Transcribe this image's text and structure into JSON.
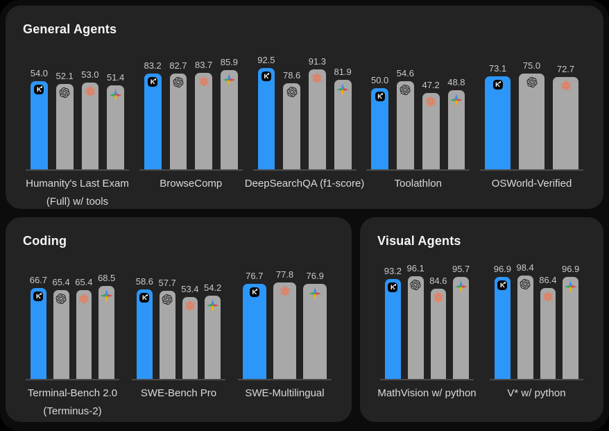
{
  "page": {
    "background": "#0C0C0C",
    "panel_background": "#232323"
  },
  "colors": {
    "highlight_bar": "#2D96F9",
    "default_bar": "#A8A8A8",
    "value_label": "#C9C9C9",
    "benchmark_label": "#DADADA",
    "baseline": "#4A4A4A",
    "claude_coral": "#E97C5B",
    "openai_dark": "#161616",
    "kimi_badge": "#060606"
  },
  "models": {
    "kimi": {
      "icon": "kimi-k-icon",
      "highlight": true
    },
    "openai": {
      "icon": "openai-icon",
      "highlight": false
    },
    "claude": {
      "icon": "claude-icon",
      "highlight": false
    },
    "gemini": {
      "icon": "gemini-icon",
      "highlight": false
    }
  },
  "panels": [
    {
      "title": "General Agents",
      "groups": [
        {
          "label": "Humanity's Last Exam (Full) w/ tools",
          "bars": [
            {
              "model": "kimi",
              "value": 54.0
            },
            {
              "model": "openai",
              "value": 52.1
            },
            {
              "model": "claude",
              "value": 53.0
            },
            {
              "model": "gemini",
              "value": 51.4
            }
          ]
        },
        {
          "label": "BrowseComp",
          "bars": [
            {
              "model": "kimi",
              "value": 83.2
            },
            {
              "model": "openai",
              "value": 82.7
            },
            {
              "model": "claude",
              "value": 83.7
            },
            {
              "model": "gemini",
              "value": 85.9
            }
          ]
        },
        {
          "label": "DeepSearchQA (f1-score)",
          "bars": [
            {
              "model": "kimi",
              "value": 92.5
            },
            {
              "model": "openai",
              "value": 78.6
            },
            {
              "model": "claude",
              "value": 91.3
            },
            {
              "model": "gemini",
              "value": 81.9
            }
          ]
        },
        {
          "label": "Toolathlon",
          "bars": [
            {
              "model": "kimi",
              "value": 50.0
            },
            {
              "model": "openai",
              "value": 54.6
            },
            {
              "model": "claude",
              "value": 47.2
            },
            {
              "model": "gemini",
              "value": 48.8
            }
          ]
        },
        {
          "label": "OSWorld-Verified",
          "bars": [
            {
              "model": "kimi",
              "value": 73.1
            },
            {
              "model": "openai",
              "value": 75.0
            },
            {
              "model": "claude",
              "value": 72.7
            }
          ]
        }
      ]
    },
    {
      "title": "Coding",
      "groups": [
        {
          "label": "Terminal-Bench 2.0 (Terminus-2)",
          "bars": [
            {
              "model": "kimi",
              "value": 66.7
            },
            {
              "model": "openai",
              "value": 65.4
            },
            {
              "model": "claude",
              "value": 65.4
            },
            {
              "model": "gemini",
              "value": 68.5
            }
          ]
        },
        {
          "label": "SWE-Bench Pro",
          "bars": [
            {
              "model": "kimi",
              "value": 58.6
            },
            {
              "model": "openai",
              "value": 57.7
            },
            {
              "model": "claude",
              "value": 53.4
            },
            {
              "model": "gemini",
              "value": 54.2
            }
          ]
        },
        {
          "label": "SWE-Multilingual",
          "bars": [
            {
              "model": "kimi",
              "value": 76.7
            },
            {
              "model": "claude",
              "value": 77.8
            },
            {
              "model": "gemini",
              "value": 76.9
            }
          ]
        }
      ]
    },
    {
      "title": "Visual Agents",
      "groups": [
        {
          "label": "MathVision w/ python",
          "bars": [
            {
              "model": "kimi",
              "value": 93.2
            },
            {
              "model": "openai",
              "value": 96.1
            },
            {
              "model": "claude",
              "value": 84.6
            },
            {
              "model": "gemini",
              "value": 95.7
            }
          ]
        },
        {
          "label": "V* w/ python",
          "bars": [
            {
              "model": "kimi",
              "value": 96.9
            },
            {
              "model": "openai",
              "value": 98.4
            },
            {
              "model": "claude",
              "value": 86.4
            },
            {
              "model": "gemini",
              "value": 96.9
            }
          ]
        }
      ]
    }
  ],
  "chart_data": [
    {
      "type": "bar",
      "title": "General Agents",
      "categories": [
        "Humanity's Last Exam (Full) w/ tools",
        "BrowseComp",
        "DeepSearchQA (f1-score)",
        "Toolathlon",
        "OSWorld-Verified"
      ],
      "series": [
        {
          "name": "Kimi (K)",
          "values": [
            54.0,
            83.2,
            92.5,
            50.0,
            73.1
          ]
        },
        {
          "name": "OpenAI",
          "values": [
            52.1,
            82.7,
            78.6,
            54.6,
            75.0
          ]
        },
        {
          "name": "Claude",
          "values": [
            53.0,
            83.7,
            91.3,
            47.2,
            72.7
          ]
        },
        {
          "name": "Gemini",
          "values": [
            51.4,
            85.9,
            81.9,
            48.8,
            null
          ]
        }
      ],
      "xlabel": "",
      "ylabel": "",
      "ylim": [
        0,
        100
      ],
      "grid": false,
      "legend_position": "icons-on-bars",
      "value_labels": true
    },
    {
      "type": "bar",
      "title": "Coding",
      "categories": [
        "Terminal-Bench 2.0 (Terminus-2)",
        "SWE-Bench Pro",
        "SWE-Multilingual"
      ],
      "series": [
        {
          "name": "Kimi (K)",
          "values": [
            66.7,
            58.6,
            76.7
          ]
        },
        {
          "name": "OpenAI",
          "values": [
            65.4,
            57.7,
            null
          ]
        },
        {
          "name": "Claude",
          "values": [
            65.4,
            53.4,
            77.8
          ]
        },
        {
          "name": "Gemini",
          "values": [
            68.5,
            54.2,
            76.9
          ]
        }
      ],
      "xlabel": "",
      "ylabel": "",
      "ylim": [
        0,
        100
      ],
      "grid": false,
      "legend_position": "icons-on-bars",
      "value_labels": true
    },
    {
      "type": "bar",
      "title": "Visual Agents",
      "categories": [
        "MathVision w/ python",
        "V* w/ python"
      ],
      "series": [
        {
          "name": "Kimi (K)",
          "values": [
            93.2,
            96.9
          ]
        },
        {
          "name": "OpenAI",
          "values": [
            96.1,
            98.4
          ]
        },
        {
          "name": "Claude",
          "values": [
            84.6,
            86.4
          ]
        },
        {
          "name": "Gemini",
          "values": [
            95.7,
            96.9
          ]
        }
      ],
      "xlabel": "",
      "ylabel": "",
      "ylim": [
        0,
        100
      ],
      "grid": false,
      "legend_position": "icons-on-bars",
      "value_labels": true
    }
  ]
}
